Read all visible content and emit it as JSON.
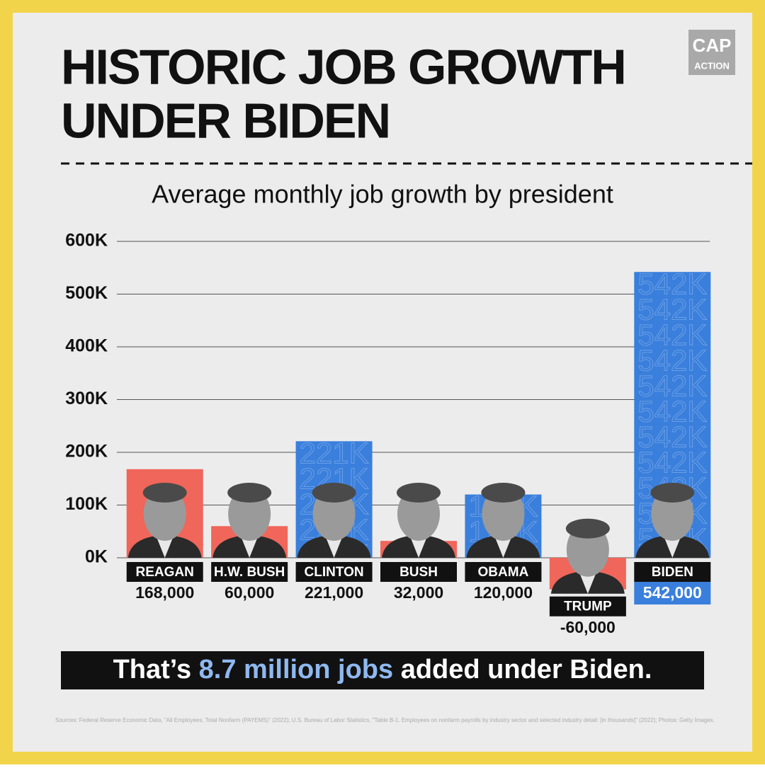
{
  "chart_data": {
    "type": "bar",
    "title_lines": [
      "HISTORIC JOB GROWTH",
      "UNDER BIDEN"
    ],
    "logo": [
      "CAP",
      "ACTION"
    ],
    "subtitle": "Average monthly job growth by president",
    "categories": [
      "REAGAN",
      "H.W. BUSH",
      "CLINTON",
      "BUSH",
      "OBAMA",
      "TRUMP",
      "BIDEN"
    ],
    "values": [
      168000,
      60000,
      221000,
      32000,
      120000,
      -60000,
      542000
    ],
    "value_labels": [
      "168,000",
      "60,000",
      "221,000",
      "32,000",
      "120,000",
      "-60,000",
      "542,000"
    ],
    "bar_watermarks": [
      null,
      null,
      "221K",
      null,
      "120K",
      null,
      "542K"
    ],
    "colors": [
      "#f0665a",
      "#f0665a",
      "#3a7fdc",
      "#f0665a",
      "#3a7fdc",
      "#f0665a",
      "#3a7fdc"
    ],
    "ylim": [
      0,
      600000
    ],
    "yticks": [
      {
        "value": 0,
        "label": "0K"
      },
      {
        "value": 100000,
        "label": "100K"
      },
      {
        "value": 200000,
        "label": "200K"
      },
      {
        "value": 300000,
        "label": "300K"
      },
      {
        "value": 400000,
        "label": "400K"
      },
      {
        "value": 500000,
        "label": "500K"
      },
      {
        "value": 600000,
        "label": "600K"
      }
    ],
    "grid": true,
    "callout": [
      "That’s ",
      "8.7 million jobs",
      " added under Biden."
    ],
    "sources": "Sources: Federal Reserve Economic Data, \"All Employees, Total Nonfarm (PAYEMS)\" (2022); U.S. Bureau of Labor Statistics, \"Table B-1. Employees on nonfarm payrolls by industry sector and selected industry detail: [in thousands]\" (2022); Photos: Getty Images."
  }
}
